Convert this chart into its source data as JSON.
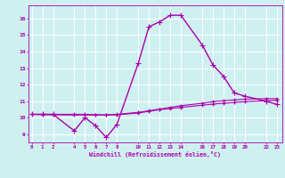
{
  "xlabel": "Windchill (Refroidissement éolien,°C)",
  "bg_color": "#cff0f0",
  "grid_color": "#ffffff",
  "line_color": "#aa00aa",
  "x_ticks": [
    0,
    1,
    2,
    4,
    5,
    6,
    7,
    8,
    10,
    11,
    12,
    13,
    14,
    16,
    17,
    18,
    19,
    20,
    22,
    23
  ],
  "y_ticks": [
    9,
    10,
    11,
    12,
    13,
    14,
    15,
    16
  ],
  "xlim": [
    -0.3,
    23.5
  ],
  "ylim": [
    8.5,
    16.8
  ],
  "series": [
    {
      "x": [
        0,
        1,
        2,
        4,
        5,
        6,
        7,
        8,
        10,
        11,
        12,
        13,
        14,
        16,
        17,
        18,
        19,
        20,
        22,
        23
      ],
      "y": [
        10.2,
        10.2,
        10.2,
        9.2,
        10.0,
        9.5,
        8.8,
        9.6,
        13.3,
        15.5,
        15.8,
        16.2,
        16.2,
        14.4,
        13.2,
        12.5,
        11.5,
        11.3,
        11.0,
        10.8
      ],
      "marker": "+",
      "markersize": 4,
      "linewidth": 1.0
    },
    {
      "x": [
        0,
        1,
        2,
        4,
        5,
        6,
        7,
        8,
        10,
        11,
        12,
        13,
        14,
        16,
        17,
        18,
        19,
        20,
        22,
        23
      ],
      "y": [
        10.2,
        10.18,
        10.17,
        10.16,
        10.16,
        10.16,
        10.16,
        10.17,
        10.28,
        10.38,
        10.48,
        10.55,
        10.62,
        10.75,
        10.82,
        10.87,
        10.92,
        10.97,
        11.02,
        11.05
      ],
      "marker": "+",
      "markersize": 3,
      "linewidth": 0.8
    },
    {
      "x": [
        0,
        1,
        2,
        4,
        5,
        6,
        7,
        8,
        10,
        11,
        12,
        13,
        14,
        16,
        17,
        18,
        19,
        20,
        22,
        23
      ],
      "y": [
        10.2,
        10.2,
        10.2,
        10.2,
        10.2,
        10.18,
        10.17,
        10.2,
        10.32,
        10.42,
        10.52,
        10.62,
        10.72,
        10.87,
        10.97,
        11.02,
        11.07,
        11.12,
        11.15,
        11.15
      ],
      "marker": "+",
      "markersize": 3,
      "linewidth": 0.8
    }
  ]
}
